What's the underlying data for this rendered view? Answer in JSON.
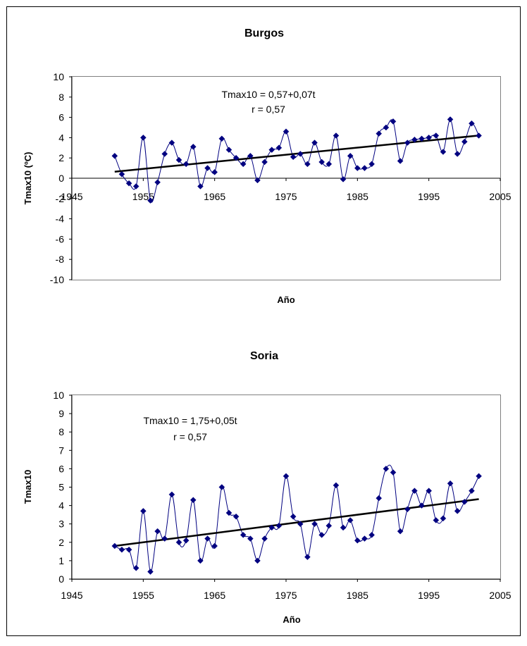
{
  "chart_data": [
    {
      "type": "line",
      "title": "Burgos",
      "xlabel": "Año",
      "ylabel": "Tmax10 (ºC)",
      "xlim": [
        1945,
        2005
      ],
      "ylim": [
        -10,
        10
      ],
      "x_ticks": [
        "1945",
        "1955",
        "1965",
        "1975",
        "1985",
        "1995",
        "2005"
      ],
      "y_ticks": [
        "-10",
        "-8",
        "-6",
        "-4",
        "-2",
        "0",
        "2",
        "4",
        "6",
        "8",
        "10"
      ],
      "annotation": [
        "Tmax10 = 0,57+0,07t",
        "r = 0,57"
      ],
      "series": [
        {
          "x": [
            1951,
            1952,
            1953,
            1954,
            1955,
            1956,
            1957,
            1958,
            1959,
            1960,
            1961,
            1962,
            1963,
            1964,
            1965,
            1966,
            1967,
            1968,
            1969,
            1970,
            1971,
            1972,
            1973,
            1974,
            1975,
            1976,
            1977,
            1978,
            1979,
            1980,
            1981,
            1982,
            1983,
            1984,
            1985,
            1986,
            1987,
            1988,
            1989,
            1990,
            1991,
            1992,
            1993,
            1994,
            1995,
            1996,
            1997,
            1998,
            1999,
            2000,
            2001,
            2002
          ],
          "values": [
            2.2,
            0.4,
            -0.5,
            -0.8,
            4.0,
            -2.2,
            -0.4,
            2.4,
            3.5,
            1.8,
            1.4,
            3.1,
            -0.8,
            1.0,
            0.6,
            3.9,
            2.8,
            2.0,
            1.4,
            2.2,
            -0.2,
            1.6,
            2.8,
            3.0,
            4.6,
            2.1,
            2.4,
            1.4,
            3.5,
            1.6,
            1.4,
            4.2,
            -0.1,
            2.2,
            1.0,
            1.0,
            1.4,
            4.4,
            5.0,
            5.6,
            1.7,
            3.5,
            3.8,
            3.9,
            4.0,
            4.2,
            2.6,
            5.8,
            2.4,
            3.6,
            5.4,
            4.2
          ],
          "color": "#000080"
        }
      ],
      "trendline": {
        "intercept": 0.57,
        "slope": 0.07,
        "x_start": 1951,
        "x_end": 2002,
        "color": "#000000"
      },
      "grid": false,
      "legend": "none"
    },
    {
      "type": "line",
      "title": "Soria",
      "xlabel": "Año",
      "ylabel": "Tmax10",
      "xlim": [
        1945,
        2005
      ],
      "ylim": [
        0,
        10
      ],
      "x_ticks": [
        "1945",
        "1955",
        "1965",
        "1975",
        "1985",
        "1995",
        "2005"
      ],
      "y_ticks": [
        "0",
        "1",
        "2",
        "3",
        "4",
        "5",
        "6",
        "7",
        "8",
        "9",
        "10"
      ],
      "annotation": [
        "Tmax10 = 1,75+0,05t",
        "r = 0,57"
      ],
      "series": [
        {
          "x": [
            1951,
            1952,
            1953,
            1954,
            1955,
            1956,
            1957,
            1958,
            1959,
            1960,
            1961,
            1962,
            1963,
            1964,
            1965,
            1966,
            1967,
            1968,
            1969,
            1970,
            1971,
            1972,
            1973,
            1974,
            1975,
            1976,
            1977,
            1978,
            1979,
            1980,
            1981,
            1982,
            1983,
            1984,
            1985,
            1986,
            1987,
            1988,
            1989,
            1990,
            1991,
            1992,
            1993,
            1994,
            1995,
            1996,
            1997,
            1998,
            1999,
            2000,
            2001,
            2002
          ],
          "values": [
            1.8,
            1.6,
            1.6,
            0.6,
            3.7,
            0.4,
            2.6,
            2.2,
            4.6,
            2.0,
            2.1,
            4.3,
            1.0,
            2.2,
            1.8,
            5.0,
            3.6,
            3.4,
            2.4,
            2.2,
            1.0,
            2.2,
            2.8,
            2.9,
            5.6,
            3.4,
            3.0,
            1.2,
            3.0,
            2.4,
            2.9,
            5.1,
            2.8,
            3.2,
            2.1,
            2.2,
            2.4,
            4.4,
            6.0,
            5.8,
            2.6,
            3.8,
            4.8,
            4.0,
            4.8,
            3.2,
            3.3,
            5.2,
            3.7,
            4.2,
            4.8,
            5.6
          ],
          "color": "#000080"
        }
      ],
      "trendline": {
        "intercept": 1.75,
        "slope": 0.05,
        "x_start": 1951,
        "x_end": 2002,
        "color": "#000000"
      },
      "grid": false,
      "legend": "none"
    }
  ]
}
